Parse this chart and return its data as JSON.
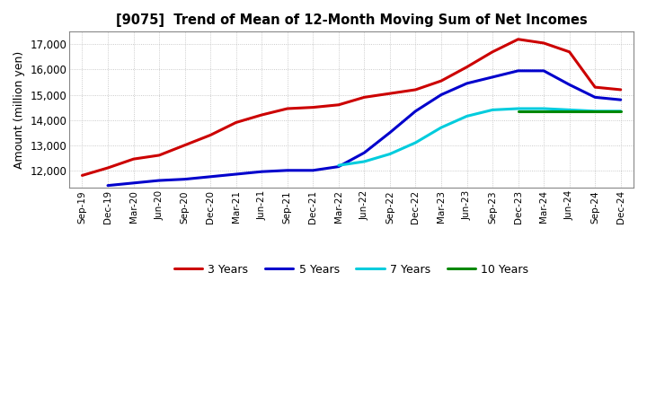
{
  "title": "[9075]  Trend of Mean of 12-Month Moving Sum of Net Incomes",
  "ylabel": "Amount (million yen)",
  "background_color": "#ffffff",
  "plot_bg_color": "#ffffff",
  "grid_color": "#bbbbbb",
  "ylim": [
    11300,
    17500
  ],
  "yticks": [
    12000,
    13000,
    14000,
    15000,
    16000,
    17000
  ],
  "x_labels": [
    "Sep-19",
    "Dec-19",
    "Mar-20",
    "Jun-20",
    "Sep-20",
    "Dec-20",
    "Mar-21",
    "Jun-21",
    "Sep-21",
    "Dec-21",
    "Mar-22",
    "Jun-22",
    "Sep-22",
    "Dec-22",
    "Mar-23",
    "Jun-23",
    "Sep-23",
    "Dec-23",
    "Mar-24",
    "Jun-24",
    "Sep-24",
    "Dec-24"
  ],
  "series": {
    "3 Years": {
      "color": "#cc0000",
      "data_x": [
        0,
        1,
        2,
        3,
        4,
        5,
        6,
        7,
        8,
        9,
        10,
        11,
        12,
        13,
        14,
        15,
        16,
        17,
        18,
        19,
        20,
        21
      ],
      "data_y": [
        11800,
        12100,
        12450,
        12600,
        13000,
        13400,
        13900,
        14200,
        14450,
        14500,
        14600,
        14900,
        15050,
        15200,
        15550,
        16100,
        16700,
        17200,
        17050,
        16700,
        15300,
        15200
      ]
    },
    "5 Years": {
      "color": "#0000cc",
      "data_x": [
        1,
        2,
        3,
        4,
        5,
        6,
        7,
        8,
        9,
        10,
        11,
        12,
        13,
        14,
        15,
        16,
        17,
        18,
        19,
        20,
        21
      ],
      "data_y": [
        11400,
        11500,
        11600,
        11650,
        11750,
        11850,
        11950,
        12000,
        12000,
        12150,
        12700,
        13500,
        14350,
        15000,
        15450,
        15700,
        15950,
        15950,
        15400,
        14900,
        14800
      ]
    },
    "7 Years": {
      "color": "#00ccdd",
      "data_x": [
        10,
        11,
        12,
        13,
        14,
        15,
        16,
        17,
        18,
        19,
        20,
        21
      ],
      "data_y": [
        12200,
        12350,
        12650,
        13100,
        13700,
        14150,
        14400,
        14450,
        14450,
        14400,
        14350,
        14350
      ]
    },
    "10 Years": {
      "color": "#008800",
      "data_x": [
        17,
        18,
        19,
        20,
        21
      ],
      "data_y": [
        14350,
        14350,
        14350,
        14350,
        14350
      ]
    }
  },
  "legend_order": [
    "3 Years",
    "5 Years",
    "7 Years",
    "10 Years"
  ]
}
